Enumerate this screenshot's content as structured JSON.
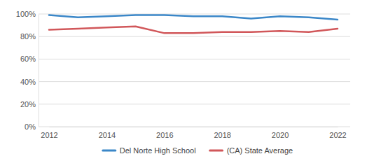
{
  "chart_data": {
    "type": "line",
    "x": [
      2012,
      2013,
      2014,
      2015,
      2016,
      2017,
      2018,
      2019,
      2020,
      2021,
      2022
    ],
    "series": [
      {
        "name": "Del Norte High School",
        "color": "#3b87c8",
        "values": [
          99,
          97,
          98,
          99,
          99,
          98,
          98,
          96,
          98,
          97,
          95
        ]
      },
      {
        "name": "(CA) State Average",
        "color": "#d1575a",
        "values": [
          86,
          87,
          88,
          89,
          83,
          83,
          84,
          84,
          85,
          84,
          87
        ]
      }
    ],
    "xlim": [
      2012,
      2022
    ],
    "xticks": [
      2012,
      2014,
      2016,
      2018,
      2020,
      2022
    ],
    "ylim": [
      0,
      100
    ],
    "yticks": [
      {
        "value": 0,
        "label": "0%"
      },
      {
        "value": 20,
        "label": "20%"
      },
      {
        "value": 40,
        "label": "40%"
      },
      {
        "value": 60,
        "label": "60%"
      },
      {
        "value": 80,
        "label": "80%"
      },
      {
        "value": 100,
        "label": "100%"
      }
    ],
    "grid": true,
    "legend": "bottom"
  }
}
